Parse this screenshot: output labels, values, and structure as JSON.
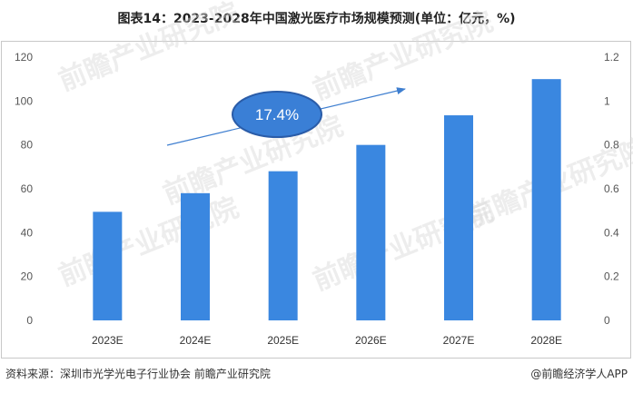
{
  "title": "图表14：2023-2028年中国激光医疗市场规模预测(单位：亿元，%)",
  "source": "资料来源：深圳市光学光电子行业协会 前瞻产业研究院",
  "brand": "@前瞻经济学人APP",
  "watermark": "前瞻产业研究院",
  "colors": {
    "bar": "#3a87e0",
    "arrow": "#3f7fd0",
    "ellipse": "#3a7fd6",
    "ellipse_border": "#2a5ca8"
  },
  "chart_data": {
    "type": "bar",
    "categories": [
      "2023E",
      "2024E",
      "2025E",
      "2026E",
      "2027E",
      "2028E"
    ],
    "values": [
      49.5,
      58,
      68,
      80,
      93.5,
      110
    ],
    "ylim": [
      0,
      120
    ],
    "yticks": [
      "0",
      "20",
      "40",
      "60",
      "80",
      "100",
      "120"
    ],
    "y2lim": [
      0,
      1.2
    ],
    "y2ticks": [
      "0",
      "0.2",
      "0.4",
      "0.6",
      "0.8",
      "1",
      "1.2"
    ],
    "annotation": "17.4%",
    "grid": false,
    "legend": "none"
  }
}
